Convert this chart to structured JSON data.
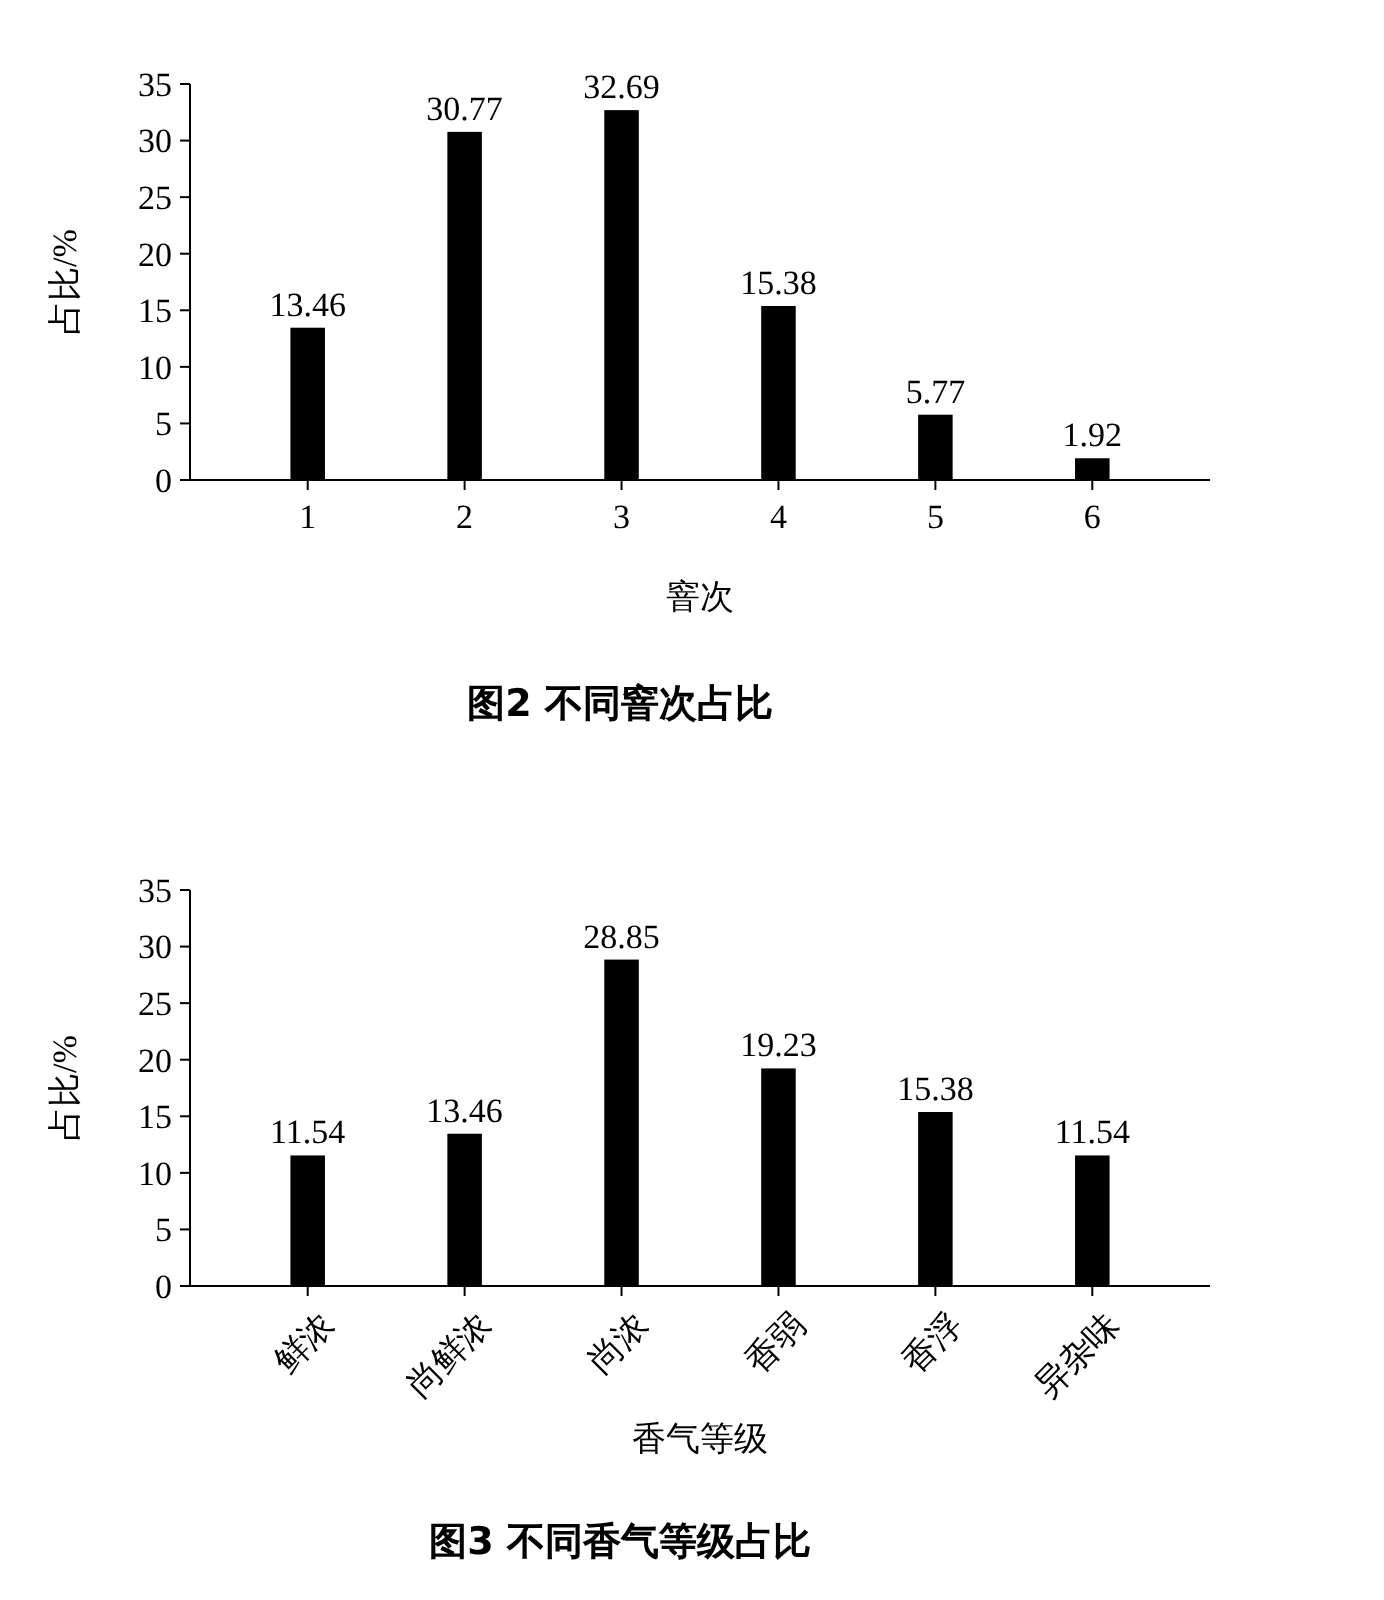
{
  "chart_data": [
    {
      "type": "bar",
      "title": "图2 不同窨次占比",
      "xlabel": "窨次",
      "ylabel": "占比/%",
      "categories": [
        "1",
        "2",
        "3",
        "4",
        "5",
        "6"
      ],
      "values": [
        13.46,
        30.77,
        32.69,
        15.38,
        5.77,
        1.92
      ],
      "color": "#000000",
      "ylim": [
        0,
        35
      ],
      "yticks": [
        0,
        5,
        10,
        15,
        20,
        25,
        30,
        35
      ],
      "data_labels": true,
      "grid": false
    },
    {
      "type": "bar",
      "title": "图3 不同香气等级占比",
      "xlabel": "香气等级",
      "ylabel": "占比/%",
      "categories": [
        "鲜浓",
        "尚鲜浓",
        "尚浓",
        "香弱",
        "香浮",
        "异杂味"
      ],
      "values": [
        11.54,
        13.46,
        28.85,
        19.23,
        15.38,
        11.54
      ],
      "color": "#000000",
      "ylim": [
        0,
        35
      ],
      "yticks": [
        0,
        5,
        10,
        15,
        20,
        25,
        30,
        35
      ],
      "data_labels": true,
      "grid": false
    }
  ]
}
